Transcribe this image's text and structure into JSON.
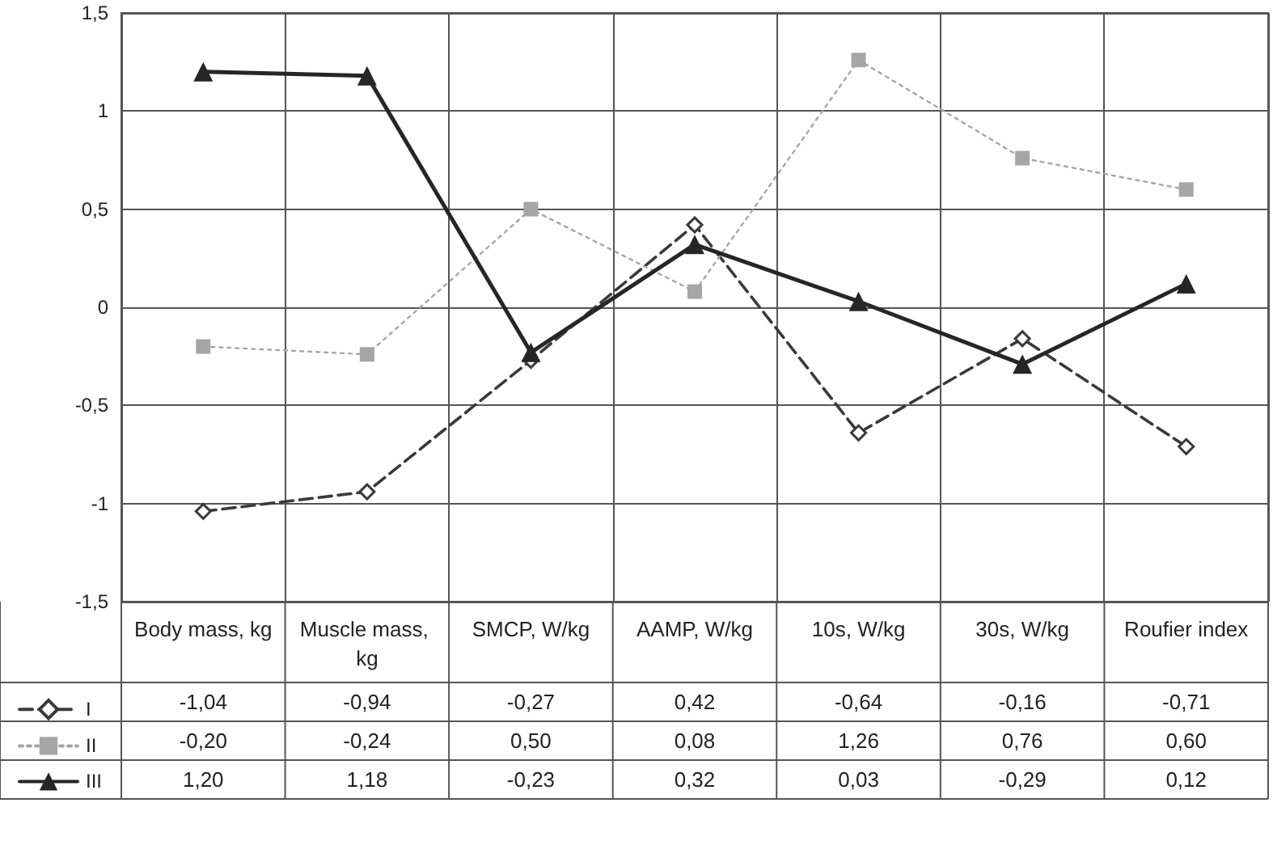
{
  "chart_data": {
    "type": "line",
    "categories": [
      "Body mass, kg",
      "Muscle mass, kg",
      "SMCP, W/kg",
      "AAMP, W/kg",
      "10s, W/kg",
      "30s, W/kg",
      "Roufier index"
    ],
    "series": [
      {
        "name": "I",
        "color": "#3a3a3a",
        "marker": "diamond",
        "line_style": "dashed",
        "values": [
          -1.04,
          -0.94,
          -0.27,
          0.42,
          -0.64,
          -0.16,
          -0.71
        ],
        "value_labels": [
          "-1,04",
          "-0,94",
          "-0,27",
          "0,42",
          "-0,64",
          "-0,16",
          "-0,71"
        ]
      },
      {
        "name": "II",
        "color": "#a6a6a6",
        "marker": "square",
        "line_style": "dotted",
        "values": [
          -0.2,
          -0.24,
          0.5,
          0.08,
          1.26,
          0.76,
          0.6
        ],
        "value_labels": [
          "-0,20",
          "-0,24",
          "0,50",
          "0,08",
          "1,26",
          "0,76",
          "0,60"
        ]
      },
      {
        "name": "III",
        "color": "#262626",
        "marker": "triangle",
        "line_style": "solid",
        "values": [
          1.2,
          1.18,
          -0.23,
          0.32,
          0.03,
          -0.29,
          0.12
        ],
        "value_labels": [
          "1,20",
          "1,18",
          "-0,23",
          "0,32",
          "0,03",
          "-0,29",
          "0,12"
        ]
      }
    ],
    "ylim": [
      -1.5,
      1.5
    ],
    "yticks": [
      {
        "value": -1.5,
        "label": "-1,5"
      },
      -1,
      {
        "value": -0.5,
        "label": "-0,5"
      },
      0,
      {
        "value": 0.5,
        "label": "0,5"
      },
      1,
      {
        "value": 1.5,
        "label": "1,5"
      }
    ],
    "grid": true,
    "legend": "bottom left"
  }
}
